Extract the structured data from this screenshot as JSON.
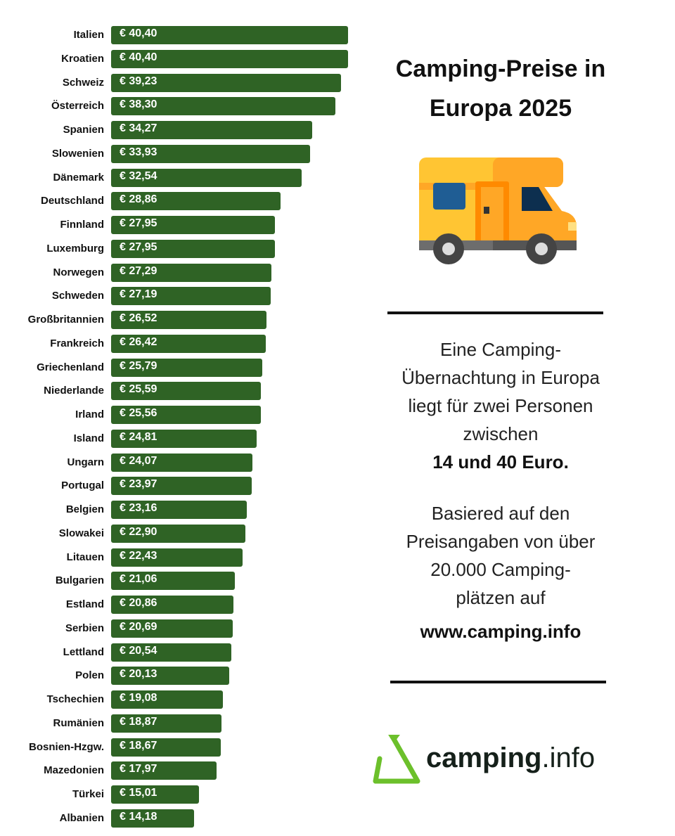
{
  "chart_data": {
    "type": "bar",
    "orientation": "horizontal",
    "title": "Camping-Preise in Europa 2025",
    "value_prefix": "€ ",
    "categories": [
      "Italien",
      "Kroatien",
      "Schweiz",
      "Österreich",
      "Spanien",
      "Slowenien",
      "Dänemark",
      "Deutschland",
      "Finnland",
      "Luxemburg",
      "Norwegen",
      "Schweden",
      "Großbritannien",
      "Frankreich",
      "Griechenland",
      "Niederlande",
      "Irland",
      "Island",
      "Ungarn",
      "Portugal",
      "Belgien",
      "Slowakei",
      "Litauen",
      "Bulgarien",
      "Estland",
      "Serbien",
      "Lettland",
      "Polen",
      "Tschechien",
      "Rumänien",
      "Bosnien-Hzgw.",
      "Mazedonien",
      "Türkei",
      "Albanien"
    ],
    "values": [
      40.4,
      40.4,
      39.23,
      38.3,
      34.27,
      33.93,
      32.54,
      28.86,
      27.95,
      27.95,
      27.29,
      27.19,
      26.52,
      26.42,
      25.79,
      25.59,
      25.56,
      24.81,
      24.07,
      23.97,
      23.16,
      22.9,
      22.43,
      21.06,
      20.86,
      20.69,
      20.54,
      20.13,
      19.08,
      18.87,
      18.67,
      17.97,
      15.01,
      14.18
    ],
    "value_labels": [
      "€ 40,40",
      "€ 40,40",
      "€ 39,23",
      "€ 38,30",
      "€ 34,27",
      "€ 33,93",
      "€ 32,54",
      "€ 28,86",
      "€ 27,95",
      "€ 27,95",
      "€ 27,29",
      "€ 27,19",
      "€ 26,52",
      "€ 26,42",
      "€ 25,79",
      "€ 25,59",
      "€ 25,56",
      "€ 24,81",
      "€ 24,07",
      "€ 23,97",
      "€ 23,16",
      "€ 22,90",
      "€ 22,43",
      "€ 21,06",
      "€ 20,86",
      "€ 20,69",
      "€ 20,54",
      "€ 20,13",
      "€ 19,08",
      "€ 18,87",
      "€ 18,67",
      "€ 17,97",
      "€ 15,01",
      "€ 14,18"
    ],
    "xlim": [
      0,
      40.4
    ],
    "grid": false,
    "bar_color": "#2f6325"
  },
  "info": {
    "title_line1": "Camping-Preise in",
    "title_line2": "Europa 2025",
    "para1": [
      "Eine Camping-",
      "Übernachtung in Europa",
      "liegt für zwei Personen",
      "zwischen"
    ],
    "para1_bold": "14 und 40 Euro.",
    "para2": [
      "Basiered auf den",
      "Preisangaben von über",
      "20.000 Camping-",
      "plätzen auf"
    ],
    "url": "www.camping.info"
  },
  "logo": {
    "text_bold": "camping",
    "text_light": ".info",
    "color": "#6cc02b"
  },
  "icons": {
    "vehicle": "camper-van-icon",
    "logo": "tent-icon"
  }
}
